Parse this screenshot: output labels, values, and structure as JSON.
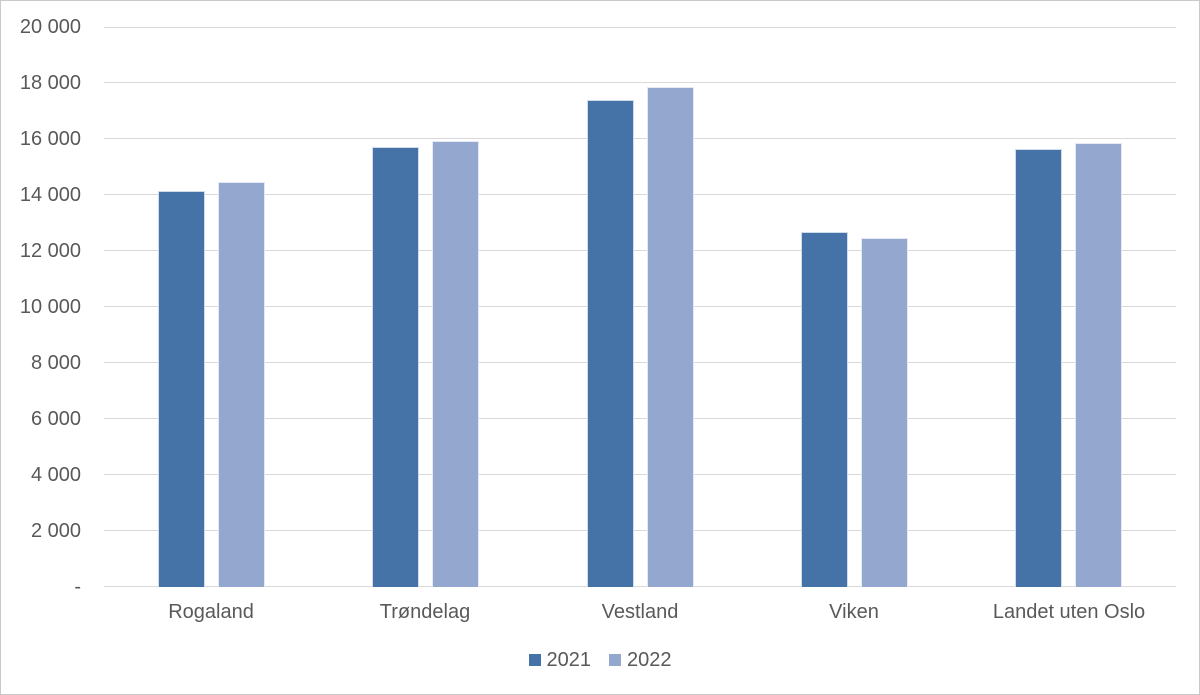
{
  "chart_data": {
    "type": "bar",
    "title": "",
    "xlabel": "",
    "ylabel": "",
    "categories": [
      "Rogaland",
      "Trøndelag",
      "Vestland",
      "Viken",
      "Landet uten Oslo"
    ],
    "series": [
      {
        "name": "2021",
        "color": "#4573A7",
        "values": [
          14150,
          15720,
          17400,
          12690,
          15640
        ]
      },
      {
        "name": "2022",
        "color": "#94A8CF",
        "values": [
          14450,
          15940,
          17860,
          12460,
          15870
        ]
      }
    ],
    "ylim": [
      0,
      20000
    ],
    "ytick_interval": 2000,
    "ytick_labels_bottom_up": [
      "-",
      "2 000",
      "4 000",
      "6 000",
      "8 000",
      "10 000",
      "12 000",
      "14 000",
      "16 000",
      "18 000",
      "20 000"
    ],
    "grid": true,
    "legend_position": "bottom"
  },
  "palette": {
    "gridline": "#D9D9D9",
    "axis_text": "#595959",
    "chart_border": "#C9C9C9",
    "background": "#FFFFFF"
  }
}
